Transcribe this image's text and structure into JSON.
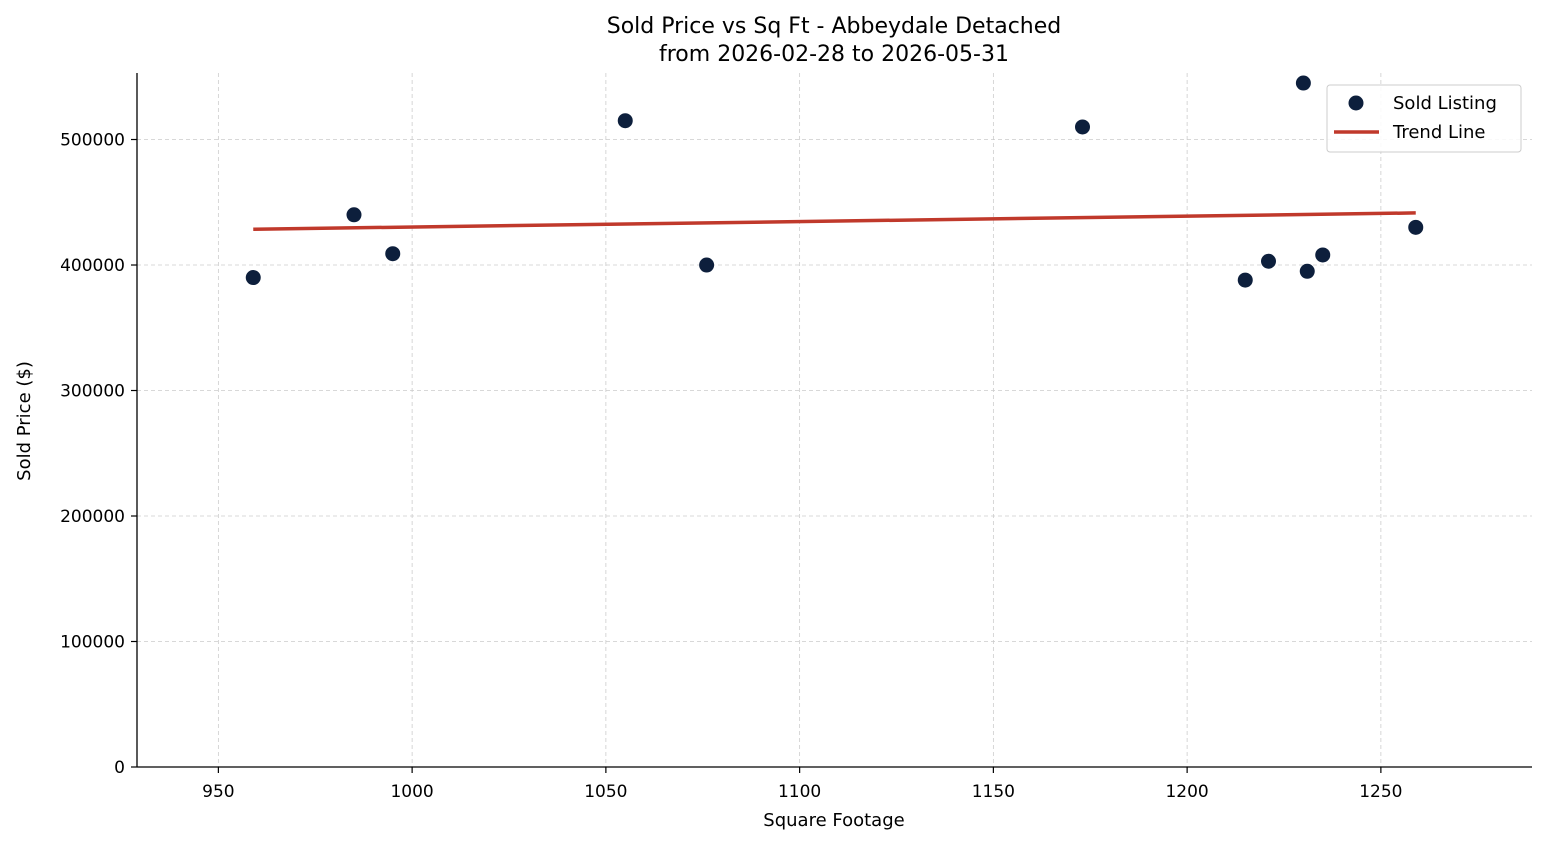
{
  "chart_data": {
    "type": "scatter",
    "title": "Sold Price vs Sq Ft - Abbeydale Detached",
    "subtitle": "from 2026-02-28 to 2026-05-31",
    "xlabel": "Square Footage",
    "ylabel": "Sold Price ($)",
    "xlim": [
      929,
      1289
    ],
    "ylim": [
      0,
      553000
    ],
    "xticks": [
      950,
      1000,
      1050,
      1100,
      1150,
      1200,
      1250
    ],
    "yticks": [
      0,
      100000,
      200000,
      300000,
      400000,
      500000
    ],
    "grid": true,
    "legend_position": "top-right",
    "colors": {
      "points": "#0d1f3c",
      "trend": "#c0392b"
    },
    "series": [
      {
        "name": "Sold Listing",
        "kind": "scatter",
        "points": [
          {
            "x": 959,
            "y": 390000
          },
          {
            "x": 985,
            "y": 440000
          },
          {
            "x": 995,
            "y": 409000
          },
          {
            "x": 1055,
            "y": 515000
          },
          {
            "x": 1076,
            "y": 400000
          },
          {
            "x": 1173,
            "y": 510000
          },
          {
            "x": 1215,
            "y": 388000
          },
          {
            "x": 1221,
            "y": 403000
          },
          {
            "x": 1230,
            "y": 545000
          },
          {
            "x": 1231,
            "y": 395000
          },
          {
            "x": 1235,
            "y": 408000
          },
          {
            "x": 1259,
            "y": 430000
          }
        ]
      },
      {
        "name": "Trend Line",
        "kind": "line",
        "points": [
          {
            "x": 959,
            "y": 428500
          },
          {
            "x": 1259,
            "y": 441500
          }
        ]
      }
    ]
  }
}
